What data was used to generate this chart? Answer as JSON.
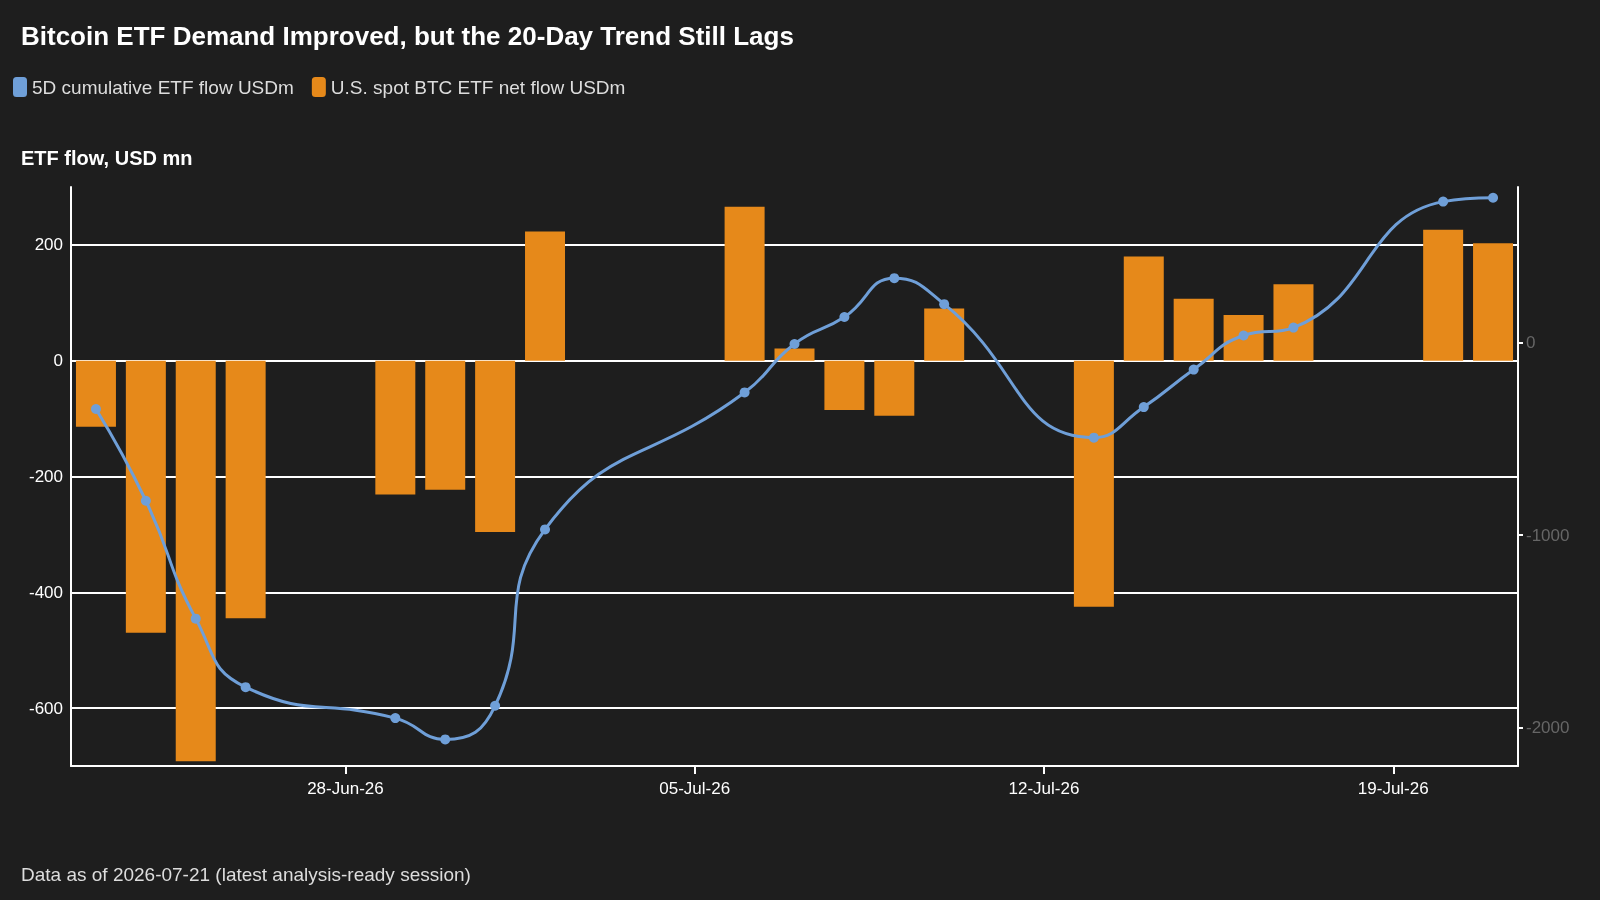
{
  "chart_data": {
    "type": "bar",
    "title": "Bitcoin ETF Demand Improved, but the 20-Day Trend Still Lags",
    "ylabel": "ETF flow, USD mn",
    "annotations": [
      "Data as of 2026-07-21 (latest analysis-ready session)"
    ],
    "x": [
      "2026-06-23",
      "2026-06-24",
      "2026-06-25",
      "2026-06-26",
      "2026-06-29",
      "2026-06-30",
      "2026-07-01",
      "2026-07-02",
      "2026-07-06",
      "2026-07-07",
      "2026-07-08",
      "2026-07-09",
      "2026-07-10",
      "2026-07-13",
      "2026-07-14",
      "2026-07-15",
      "2026-07-16",
      "2026-07-17",
      "2026-07-20",
      "2026-07-21"
    ],
    "series": [
      {
        "name": "5D cumulative ETF flow USDm",
        "type": "line",
        "axis": "y2",
        "color": "#6f9fd8",
        "values": [
          -344,
          -821,
          -1434,
          -1790,
          -1951,
          -2062,
          -1887,
          -970,
          -258,
          -6,
          134,
          336,
          201,
          -493,
          -334,
          -139,
          38,
          79,
          734,
          754
        ]
      },
      {
        "name": "U.S. spot BTC ETF net flow USDm",
        "color": "#e6891a",
        "values": [
          -114,
          -470,
          -692,
          -445,
          -231,
          -223,
          -296,
          223,
          266,
          21,
          -85,
          -95,
          90,
          -425,
          180,
          107,
          79,
          132,
          226,
          203
        ]
      }
    ],
    "xlim": [
      "2026-06-22T12:00",
      "2026-07-21T12:00"
    ],
    "xticks": [
      {
        "value": "2026-06-28",
        "label": "28-Jun-26"
      },
      {
        "value": "2026-07-05",
        "label": "05-Jul-26"
      },
      {
        "value": "2026-07-12",
        "label": "12-Jul-26"
      },
      {
        "value": "2026-07-19",
        "label": "19-Jul-26"
      }
    ],
    "ylim": [
      -700,
      300
    ],
    "yticks": [
      -600,
      -400,
      -200,
      0,
      200
    ],
    "y2lim": [
      -2200,
      810
    ],
    "y2ticks": [
      -2000,
      -1000,
      0
    ],
    "grid": "y",
    "legend": "top left",
    "marker": "circle"
  }
}
